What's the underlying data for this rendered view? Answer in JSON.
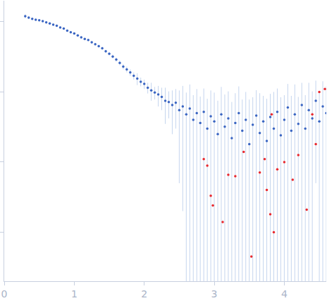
{
  "chart_data": {
    "type": "scatter",
    "log": "y",
    "tick_labels": "x",
    "marker": "circle",
    "xlim": [
      0,
      4.6
    ],
    "ylim": [
      0.0002,
      2
    ],
    "xticks": [
      0,
      1,
      2,
      3,
      4
    ],
    "yticks": [
      0.001,
      0.01,
      0.1,
      1
    ],
    "series": [
      {
        "color": "#3a65c2",
        "error_color": "#c5d5ee",
        "x": [
          0.3,
          0.35,
          0.4,
          0.45,
          0.5,
          0.55,
          0.6,
          0.65,
          0.7,
          0.75,
          0.8,
          0.85,
          0.9,
          0.95,
          1.0,
          1.05,
          1.1,
          1.15,
          1.2,
          1.25,
          1.3,
          1.35,
          1.4,
          1.45,
          1.5,
          1.55,
          1.6,
          1.65,
          1.7,
          1.75,
          1.8,
          1.85,
          1.9,
          1.95,
          2.0,
          2.05,
          2.1,
          2.15,
          2.2,
          2.25,
          2.3,
          2.35,
          2.4,
          2.45,
          2.5,
          2.55,
          2.6,
          2.65,
          2.7,
          2.75,
          2.8,
          2.85,
          2.9,
          2.95,
          3.0,
          3.05,
          3.1,
          3.15,
          3.2,
          3.25,
          3.3,
          3.35,
          3.4,
          3.45,
          3.5,
          3.55,
          3.6,
          3.65,
          3.7,
          3.75,
          3.8,
          3.85,
          3.9,
          3.95,
          4.0,
          4.05,
          4.1,
          4.15,
          4.2,
          4.25,
          4.3,
          4.35,
          4.4,
          4.45,
          4.5,
          4.55,
          4.6
        ],
        "values": [
          1.2,
          1.15,
          1.1,
          1.07,
          1.05,
          1.02,
          0.98,
          0.95,
          0.91,
          0.88,
          0.83,
          0.8,
          0.75,
          0.71,
          0.68,
          0.64,
          0.6,
          0.57,
          0.55,
          0.51,
          0.48,
          0.45,
          0.42,
          0.38,
          0.35,
          0.32,
          0.29,
          0.26,
          0.23,
          0.21,
          0.19,
          0.17,
          0.155,
          0.14,
          0.13,
          0.115,
          0.105,
          0.098,
          0.092,
          0.085,
          0.075,
          0.072,
          0.065,
          0.07,
          0.055,
          0.062,
          0.048,
          0.058,
          0.04,
          0.05,
          0.036,
          0.052,
          0.03,
          0.045,
          0.038,
          0.025,
          0.048,
          0.032,
          0.042,
          0.022,
          0.036,
          0.05,
          0.028,
          0.04,
          0.018,
          0.034,
          0.046,
          0.026,
          0.038,
          0.02,
          0.044,
          0.03,
          0.052,
          0.024,
          0.04,
          0.06,
          0.028,
          0.048,
          0.035,
          0.065,
          0.03,
          0.055,
          0.042,
          0.075,
          0.038,
          0.062,
          0.05
        ],
        "errors": [
          0.08,
          0.05,
          0.04,
          0.03,
          0.03,
          0.03,
          0.03,
          0.03,
          0.03,
          0.03,
          0.02,
          0.02,
          0.02,
          0.02,
          0.02,
          0.02,
          0.02,
          0.02,
          0.02,
          0.02,
          0.02,
          0.02,
          0.02,
          0.02,
          0.02,
          0.02,
          0.02,
          0.02,
          0.02,
          0.02,
          0.02,
          0.02,
          0.03,
          0.02,
          0.02,
          0.02,
          0.03,
          0.02,
          0.03,
          0.03,
          0.04,
          0.03,
          0.04,
          0.04,
          0.05,
          0.06,
          0.05,
          0.07,
          0.05,
          0.06,
          0.05,
          0.06,
          0.05,
          0.06,
          0.06,
          0.05,
          0.07,
          0.06,
          0.06,
          0.05,
          0.06,
          0.07,
          0.05,
          0.06,
          0.06,
          0.05,
          0.06,
          0.07,
          0.05,
          0.06,
          0.05,
          0.07,
          0.06,
          0.06,
          0.05,
          0.07,
          0.06,
          0.08,
          0.05,
          0.07,
          0.06,
          0.08,
          0.06,
          0.07,
          0.06,
          0.08,
          0.07
        ]
      },
      {
        "color": "#e8282e",
        "x": [
          2.85,
          2.9,
          2.95,
          2.98,
          3.12,
          3.2,
          3.3,
          3.42,
          3.53,
          3.65,
          3.72,
          3.75,
          3.8,
          3.82,
          3.85,
          3.9,
          4.0,
          4.12,
          4.2,
          4.32,
          4.4,
          4.45,
          4.5,
          4.58
        ],
        "values": [
          0.011,
          0.0089,
          0.0033,
          0.0024,
          0.0014,
          0.0066,
          0.0063,
          0.014,
          0.00045,
          0.0071,
          0.011,
          0.004,
          0.0018,
          0.048,
          0.001,
          0.0079,
          0.01,
          0.0056,
          0.0126,
          0.0021,
          0.048,
          0.018,
          0.1,
          0.11
        ]
      }
    ]
  }
}
